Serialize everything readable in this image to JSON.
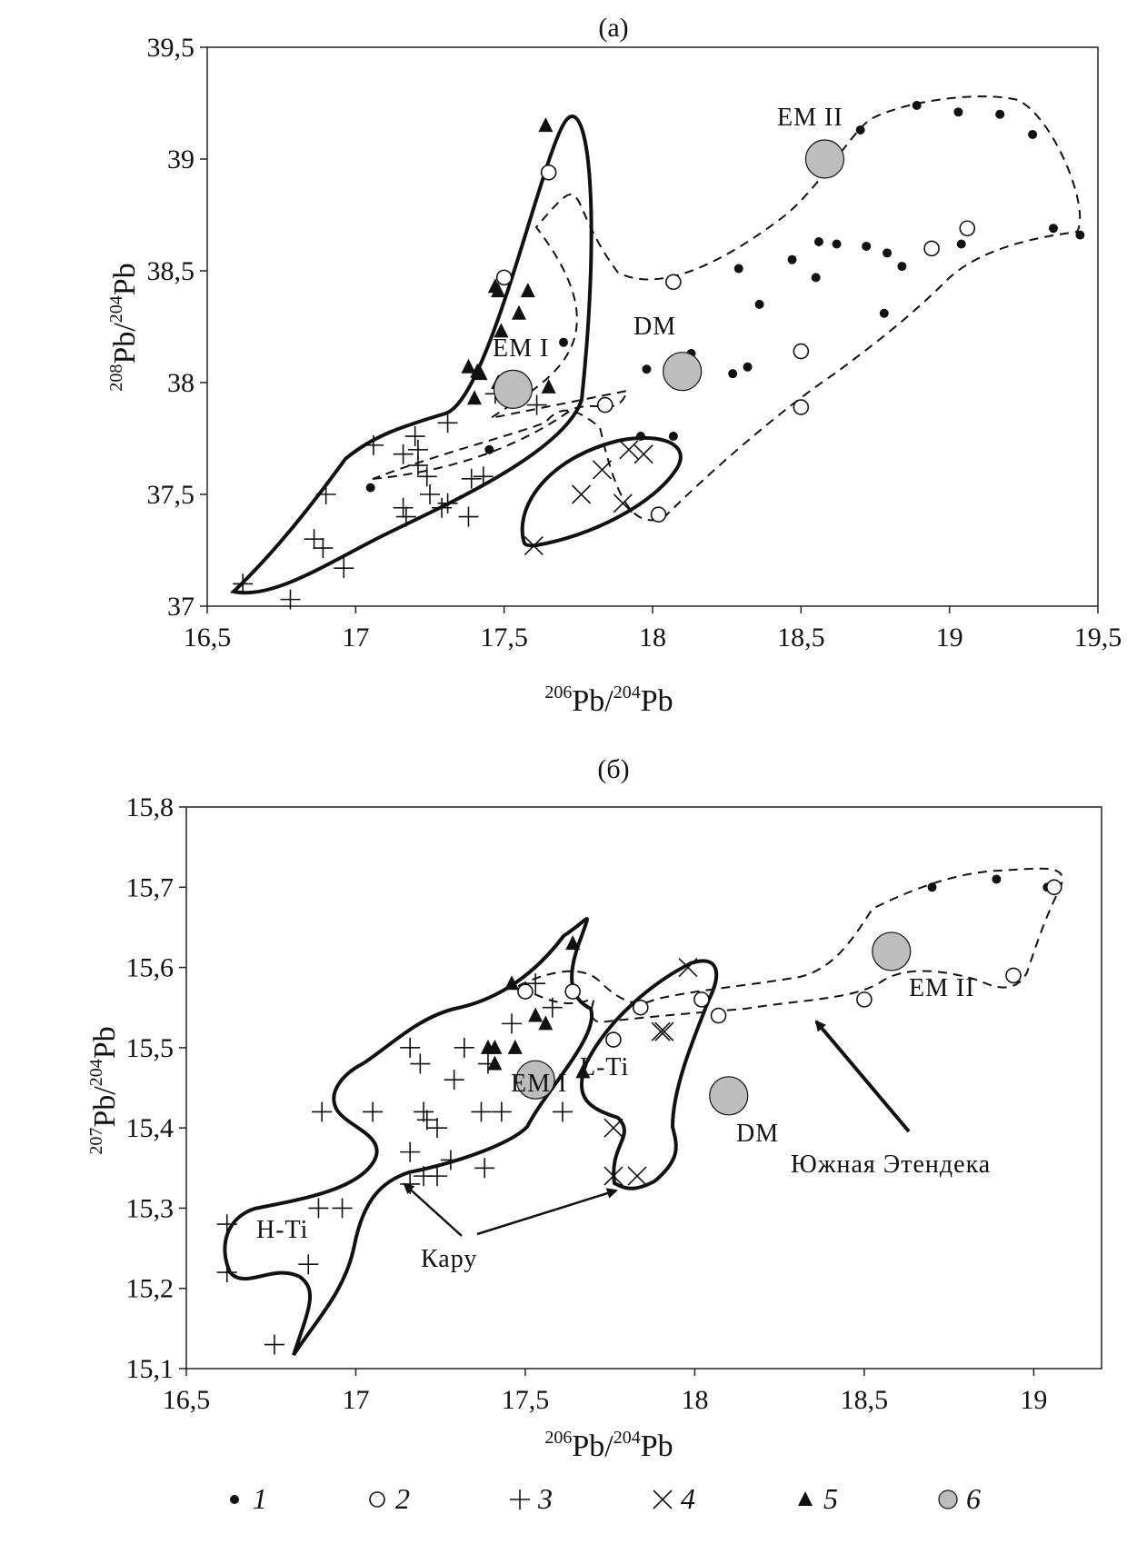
{
  "figure": {
    "legend": [
      {
        "symbol": "dot",
        "label": "1"
      },
      {
        "symbol": "circle-open",
        "label": "2"
      },
      {
        "symbol": "plus",
        "label": "3"
      },
      {
        "symbol": "cross",
        "label": "4"
      },
      {
        "symbol": "triangle",
        "label": "5"
      },
      {
        "symbol": "circle-gray",
        "label": "6"
      }
    ]
  },
  "chart_data": [
    {
      "type": "scatter",
      "title": "(а)",
      "xlabel_base": "Pb/",
      "xlabel_sup1": "206",
      "xlabel_sup2": "204",
      "xlabel_end": "Pb",
      "ylabel_base": "Pb/",
      "ylabel_sup1": "208",
      "ylabel_sup2": "204",
      "ylabel_end": "Pb",
      "xlim": [
        16.5,
        19.5
      ],
      "ylim": [
        37,
        39.5
      ],
      "xticks": [
        "16,5",
        "17",
        "17,5",
        "18",
        "18,5",
        "19",
        "19,5"
      ],
      "yticks": [
        "37",
        "37,5",
        "38",
        "38,5",
        "39",
        "39,5"
      ],
      "grid": false,
      "series": [
        {
          "symbol": "dot",
          "points": [
            [
              17.05,
              37.53
            ],
            [
              17.45,
              37.7
            ],
            [
              17.7,
              38.18
            ],
            [
              17.96,
              37.76
            ],
            [
              17.98,
              38.06
            ],
            [
              18.07,
              37.76
            ],
            [
              18.13,
              38.13
            ],
            [
              18.27,
              38.04
            ],
            [
              18.29,
              38.51
            ],
            [
              18.32,
              38.07
            ],
            [
              18.36,
              38.35
            ],
            [
              18.47,
              38.55
            ],
            [
              18.55,
              38.47
            ],
            [
              18.56,
              38.63
            ],
            [
              18.62,
              38.62
            ],
            [
              18.7,
              39.13
            ],
            [
              18.72,
              38.61
            ],
            [
              18.78,
              38.31
            ],
            [
              18.79,
              38.58
            ],
            [
              18.84,
              38.52
            ],
            [
              18.89,
              39.24
            ],
            [
              19.03,
              39.21
            ],
            [
              19.04,
              38.62
            ],
            [
              19.17,
              39.2
            ],
            [
              19.28,
              39.11
            ],
            [
              19.35,
              38.69
            ],
            [
              19.44,
              38.66
            ]
          ]
        },
        {
          "symbol": "circle-open",
          "points": [
            [
              17.5,
              38.47
            ],
            [
              17.65,
              38.94
            ],
            [
              17.84,
              37.9
            ],
            [
              18.02,
              37.41
            ],
            [
              18.07,
              38.45
            ],
            [
              18.5,
              38.14
            ],
            [
              18.5,
              37.89
            ],
            [
              18.94,
              38.6
            ],
            [
              19.06,
              38.69
            ]
          ]
        },
        {
          "symbol": "plus",
          "points": [
            [
              16.62,
              37.1
            ],
            [
              16.78,
              37.03
            ],
            [
              16.86,
              37.3
            ],
            [
              16.89,
              37.26
            ],
            [
              16.9,
              37.5
            ],
            [
              16.96,
              37.17
            ],
            [
              17.06,
              37.72
            ],
            [
              17.16,
              37.68
            ],
            [
              17.16,
              37.44
            ],
            [
              17.17,
              37.4
            ],
            [
              17.2,
              37.76
            ],
            [
              17.21,
              37.7
            ],
            [
              17.21,
              37.63
            ],
            [
              17.24,
              37.58
            ],
            [
              17.25,
              37.5
            ],
            [
              17.29,
              37.44
            ],
            [
              17.31,
              37.46
            ],
            [
              17.31,
              37.82
            ],
            [
              17.38,
              37.4
            ],
            [
              17.39,
              37.57
            ],
            [
              17.43,
              37.58
            ],
            [
              17.47,
              37.95
            ],
            [
              17.61,
              37.9
            ]
          ]
        },
        {
          "symbol": "cross",
          "points": [
            [
              17.6,
              37.27
            ],
            [
              17.76,
              37.5
            ],
            [
              17.83,
              37.61
            ],
            [
              17.9,
              37.46
            ],
            [
              17.92,
              37.7
            ],
            [
              17.97,
              37.68
            ]
          ]
        },
        {
          "symbol": "triangle",
          "points": [
            [
              17.38,
              38.07
            ],
            [
              17.41,
              38.05
            ],
            [
              17.4,
              37.93
            ],
            [
              17.42,
              38.04
            ],
            [
              17.47,
              38.43
            ],
            [
              17.48,
              38.41
            ],
            [
              17.48,
              38.0
            ],
            [
              17.55,
              38.31
            ],
            [
              17.58,
              38.41
            ],
            [
              17.64,
              39.15
            ],
            [
              17.65,
              37.98
            ],
            [
              17.49,
              38.23
            ]
          ]
        },
        {
          "symbol": "circle-gray",
          "points": [
            [
              17.53,
              37.97
            ],
            [
              18.1,
              38.05
            ],
            [
              18.58,
              39.0
            ]
          ]
        }
      ],
      "annotations": [
        "EM II",
        "DM",
        "EM I"
      ]
    },
    {
      "type": "scatter",
      "title": "(б)",
      "xlabel_base": "Pb/",
      "xlabel_sup1": "206",
      "xlabel_sup2": "204",
      "xlabel_end": "Pb",
      "ylabel_base": "Pb/",
      "ylabel_sup1": "207",
      "ylabel_sup2": "204",
      "ylabel_end": "Pb",
      "xlim": [
        16.5,
        19.2
      ],
      "ylim": [
        15.1,
        15.8
      ],
      "xticks": [
        "16,5",
        "17",
        "17,5",
        "18",
        "18,5",
        "19"
      ],
      "yticks": [
        "15,1",
        "15,2",
        "15,3",
        "15,4",
        "15,5",
        "15,6",
        "15,7",
        "15,8"
      ],
      "grid": false,
      "series": [
        {
          "symbol": "dot",
          "points": [
            [
              18.7,
              15.7
            ],
            [
              18.89,
              15.71
            ],
            [
              19.04,
              15.7
            ]
          ]
        },
        {
          "symbol": "circle-open",
          "points": [
            [
              17.5,
              15.57
            ],
            [
              17.64,
              15.57
            ],
            [
              17.76,
              15.51
            ],
            [
              17.84,
              15.55
            ],
            [
              18.02,
              15.56
            ],
            [
              18.07,
              15.54
            ],
            [
              18.5,
              15.56
            ],
            [
              18.94,
              15.59
            ],
            [
              19.06,
              15.7
            ]
          ]
        },
        {
          "symbol": "plus",
          "points": [
            [
              16.62,
              15.28
            ],
            [
              16.62,
              15.22
            ],
            [
              16.76,
              15.13
            ],
            [
              16.86,
              15.23
            ],
            [
              16.89,
              15.3
            ],
            [
              16.9,
              15.42
            ],
            [
              16.96,
              15.3
            ],
            [
              17.05,
              15.42
            ],
            [
              17.16,
              15.5
            ],
            [
              17.16,
              15.33
            ],
            [
              17.16,
              15.37
            ],
            [
              17.19,
              15.48
            ],
            [
              17.2,
              15.42
            ],
            [
              17.2,
              15.34
            ],
            [
              17.21,
              15.41
            ],
            [
              17.24,
              15.34
            ],
            [
              17.24,
              15.4
            ],
            [
              17.28,
              15.36
            ],
            [
              17.29,
              15.46
            ],
            [
              17.32,
              15.5
            ],
            [
              17.37,
              15.42
            ],
            [
              17.38,
              15.35
            ],
            [
              17.39,
              15.48
            ],
            [
              17.43,
              15.42
            ],
            [
              17.46,
              15.53
            ],
            [
              17.53,
              15.58
            ],
            [
              17.58,
              15.55
            ],
            [
              17.61,
              15.42
            ]
          ]
        },
        {
          "symbol": "cross",
          "points": [
            [
              17.76,
              15.34
            ],
            [
              17.76,
              15.4
            ],
            [
              17.83,
              15.34
            ],
            [
              17.9,
              15.52
            ],
            [
              17.91,
              15.52
            ],
            [
              17.98,
              15.6
            ]
          ]
        },
        {
          "symbol": "triangle",
          "points": [
            [
              17.46,
              15.58
            ],
            [
              17.39,
              15.5
            ],
            [
              17.41,
              15.48
            ],
            [
              17.41,
              15.5
            ],
            [
              17.47,
              15.5
            ],
            [
              17.53,
              15.54
            ],
            [
              17.56,
              15.53
            ],
            [
              17.64,
              15.63
            ],
            [
              17.67,
              15.47
            ]
          ]
        },
        {
          "symbol": "circle-gray",
          "points": [
            [
              17.53,
              15.46
            ],
            [
              18.1,
              15.44
            ],
            [
              18.58,
              15.62
            ]
          ]
        }
      ],
      "annotations": [
        "EM II",
        "EM I",
        "L-Ti",
        "DM",
        "Южная Этендека",
        "H-Ti",
        "Кару"
      ]
    }
  ]
}
